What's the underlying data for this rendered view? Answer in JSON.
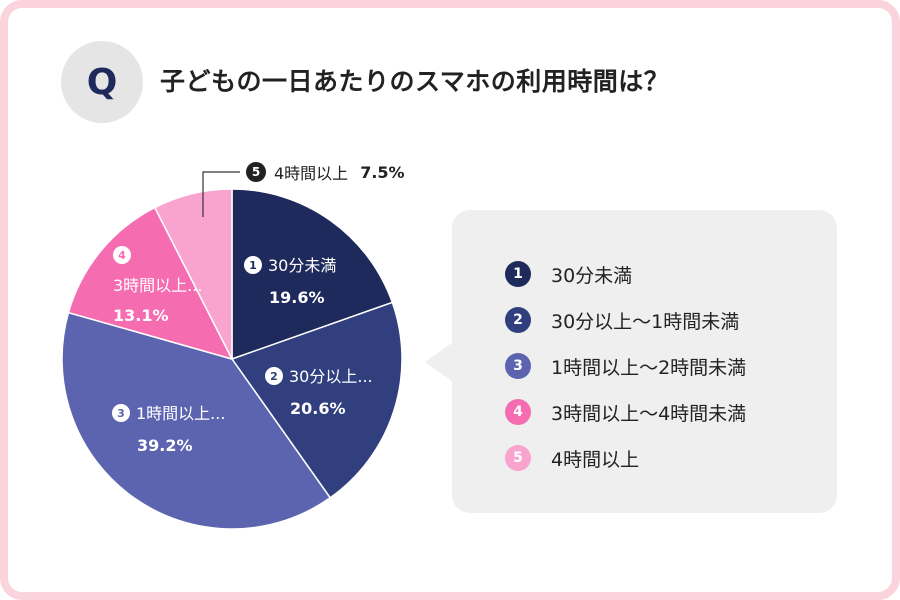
{
  "question_badge": "Q",
  "title": "子どもの一日あたりのスマホの利用時間は？",
  "chart_data": {
    "type": "pie",
    "title": "子どもの一日あたりのスマホの利用時間は？",
    "start_angle_deg": 0,
    "direction": "clockwise",
    "slices": [
      {
        "num": "1",
        "name": "30分未満",
        "label": "30分未満",
        "value": 19.6,
        "pct_text": "19.6%",
        "color": "#1f2a5c",
        "name_color": "#ffffff"
      },
      {
        "num": "2",
        "name": "30分以上〜1時間未満",
        "label": "30分以上...",
        "value": 20.6,
        "pct_text": "20.6%",
        "color": "#323f7f",
        "name_color": "#ffffff"
      },
      {
        "num": "3",
        "name": "1時間以上〜2時間未満",
        "label": "1時間以上...",
        "value": 39.2,
        "pct_text": "39.2%",
        "color": "#5c64b0",
        "name_color": "#ffffff"
      },
      {
        "num": "4",
        "name": "3時間以上〜4時間未満",
        "label": "3時間以上...",
        "value": 13.1,
        "pct_text": "13.1%",
        "color": "#f56cb0",
        "name_color": "#ffffff"
      },
      {
        "num": "5",
        "name": "4時間以上",
        "label": "4時間以上",
        "value": 7.5,
        "pct_text": "7.5%",
        "color": "#f9a3cf",
        "name_color": "#222222"
      }
    ]
  },
  "legend": {
    "items": [
      {
        "num": "1",
        "label": "30分未満",
        "color": "#1f2a5c"
      },
      {
        "num": "2",
        "label": "30分以上〜1時間未満",
        "color": "#323f7f"
      },
      {
        "num": "3",
        "label": "1時間以上〜2時間未満",
        "color": "#5c64b0"
      },
      {
        "num": "4",
        "label": "3時間以上〜4時間未満",
        "color": "#f56cb0"
      },
      {
        "num": "5",
        "label": "4時間以上",
        "color": "#f9a3cf"
      }
    ]
  },
  "callout": {
    "num": "5",
    "name": "4時間以上",
    "pct": "7.5%"
  }
}
